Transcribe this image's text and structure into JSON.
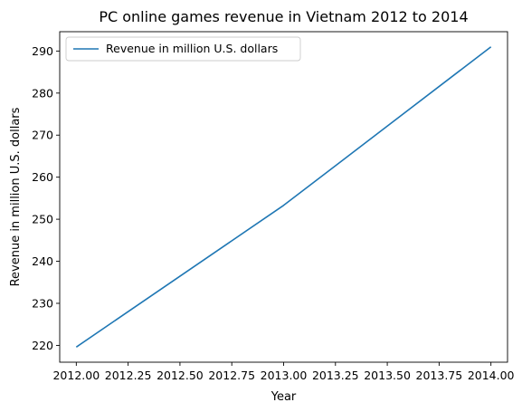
{
  "chart_data": {
    "type": "line",
    "title": "PC online games revenue in Vietnam 2012 to 2014",
    "xlabel": "Year",
    "ylabel": "Revenue in million U.S. dollars",
    "x": [
      2012,
      2013,
      2014
    ],
    "series": [
      {
        "name": "Revenue in million U.S. dollars",
        "values": [
          219.6,
          253.3,
          291.0
        ],
        "color": "#1f77b4"
      }
    ],
    "xlim": [
      2011.92,
      2014.08
    ],
    "ylim": [
      216.0,
      294.6
    ],
    "xticks": [
      2012.0,
      2012.25,
      2012.5,
      2012.75,
      2013.0,
      2013.25,
      2013.5,
      2013.75,
      2014.0
    ],
    "xtick_labels": [
      "2012.00",
      "2012.25",
      "2012.50",
      "2012.75",
      "2013.00",
      "2013.25",
      "2013.50",
      "2013.75",
      "2014.00"
    ],
    "yticks": [
      220,
      230,
      240,
      250,
      260,
      270,
      280,
      290
    ],
    "ytick_labels": [
      "220",
      "230",
      "240",
      "250",
      "260",
      "270",
      "280",
      "290"
    ],
    "grid": false,
    "legend_position": "top-left"
  }
}
